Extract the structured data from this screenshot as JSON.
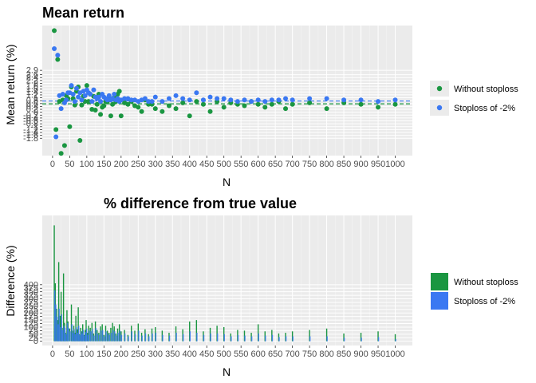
{
  "colors": {
    "without": "#1a9641",
    "with": "#3a78f2",
    "panel": "#ebebeb",
    "grid_major": "#ffffff"
  },
  "legend": {
    "items": [
      "Without stoploss",
      "Stoploss of -2%"
    ]
  },
  "chart_data": [
    {
      "type": "scatter",
      "title": "Mean return",
      "xlabel": "N",
      "ylabel": "Mean return (%)",
      "x_ticks": [
        0,
        50,
        100,
        150,
        200,
        250,
        300,
        350,
        400,
        450,
        500,
        550,
        600,
        650,
        700,
        750,
        800,
        850,
        900,
        950,
        1000
      ],
      "y_ticks": [
        "-1.8",
        "-1.6",
        "-1.4",
        "-1.2",
        "-1",
        "-0.8",
        "-0.6",
        "-0.4",
        "-0.2",
        "0",
        "0.2",
        "0.4",
        "0.6",
        "0.8",
        "1",
        "1.2",
        "1.4",
        "1.6",
        "1.8",
        "2",
        "2.2",
        "2.4",
        "2.6",
        "2.9"
      ],
      "y_tick_values": [
        -1.8,
        -1.6,
        -1.4,
        -1.2,
        -1.0,
        -0.8,
        -0.6,
        -0.4,
        -0.2,
        0.0,
        0.2,
        0.4,
        0.6,
        0.8,
        1.0,
        1.2,
        1.4,
        1.6,
        1.8,
        2.0,
        2.2,
        2.4,
        2.6,
        2.9
      ],
      "xlim": [
        -30,
        1050
      ],
      "ylim": [
        -3.0,
        6.0
      ],
      "hlines": [
        {
          "series": "Without stoploss",
          "y": 0.58
        },
        {
          "series": "Stoploss of -2%",
          "y": 0.78
        }
      ],
      "series": [
        {
          "name": "Without stoploss",
          "x": [
            5,
            10,
            15,
            20,
            25,
            30,
            35,
            40,
            45,
            50,
            55,
            60,
            65,
            70,
            75,
            80,
            85,
            90,
            95,
            100,
            105,
            110,
            115,
            120,
            125,
            130,
            135,
            140,
            145,
            150,
            155,
            160,
            165,
            170,
            175,
            180,
            185,
            190,
            195,
            200,
            210,
            220,
            230,
            240,
            250,
            260,
            270,
            280,
            290,
            300,
            320,
            340,
            360,
            380,
            400,
            420,
            440,
            460,
            480,
            500,
            520,
            540,
            560,
            580,
            600,
            620,
            640,
            660,
            680,
            700,
            750,
            800,
            850,
            900,
            950,
            1000
          ],
          "y": [
            5.65,
            -1.2,
            3.65,
            0.75,
            -2.85,
            0.85,
            -2.3,
            1.15,
            0.95,
            -1.0,
            1.75,
            0.95,
            0.5,
            1.45,
            1.75,
            -1.95,
            0.5,
            1.1,
            0.75,
            1.85,
            0.75,
            1.25,
            0.2,
            1.1,
            0.15,
            0.55,
            1.25,
            -0.15,
            0.35,
            0.45,
            0.75,
            0.75,
            0.95,
            -0.25,
            0.55,
            1.05,
            0.75,
            1.25,
            1.45,
            -0.25,
            0.65,
            0.55,
            0.75,
            0.45,
            0.35,
            0.05,
            0.85,
            0.55,
            0.55,
            0.25,
            0.05,
            0.45,
            0.25,
            0.65,
            -0.25,
            0.75,
            0.55,
            0.05,
            0.75,
            0.35,
            0.65,
            0.55,
            0.45,
            0.75,
            0.55,
            0.35,
            0.55,
            0.75,
            0.25,
            0.55,
            0.65,
            0.25,
            0.65,
            0.55,
            0.35,
            0.55
          ]
        },
        {
          "name": "Stoploss of -2%",
          "x": [
            5,
            10,
            15,
            20,
            25,
            30,
            35,
            40,
            45,
            50,
            55,
            60,
            65,
            70,
            75,
            80,
            85,
            90,
            95,
            100,
            105,
            110,
            115,
            120,
            125,
            130,
            135,
            140,
            145,
            150,
            155,
            160,
            165,
            170,
            175,
            180,
            185,
            190,
            195,
            200,
            210,
            220,
            230,
            240,
            250,
            260,
            270,
            280,
            290,
            300,
            320,
            340,
            360,
            380,
            400,
            420,
            440,
            460,
            480,
            500,
            520,
            540,
            560,
            580,
            600,
            620,
            640,
            660,
            680,
            700,
            750,
            800,
            850,
            900,
            950,
            1000
          ],
          "y": [
            4.4,
            -1.7,
            3.95,
            1.15,
            0.25,
            1.25,
            0.65,
            0.85,
            1.35,
            1.35,
            1.85,
            1.25,
            0.75,
            1.65,
            1.05,
            1.35,
            0.85,
            1.45,
            1.15,
            1.55,
            1.35,
            1.25,
            0.75,
            1.55,
            1.05,
            0.95,
            1.05,
            0.75,
            1.25,
            1.05,
            0.95,
            0.85,
            1.15,
            0.85,
            0.95,
            1.25,
            0.85,
            0.95,
            0.75,
            0.85,
            0.95,
            0.95,
            0.85,
            0.85,
            0.75,
            0.85,
            0.95,
            0.75,
            0.75,
            1.05,
            0.75,
            0.95,
            1.15,
            0.95,
            0.85,
            1.35,
            0.85,
            1.05,
            0.95,
            0.95,
            0.85,
            0.75,
            0.85,
            0.75,
            0.85,
            0.75,
            0.85,
            0.85,
            0.95,
            0.85,
            0.95,
            0.95,
            0.85,
            0.85,
            0.75,
            0.85
          ]
        }
      ]
    },
    {
      "type": "bar",
      "title": "% difference from true value",
      "xlabel": "N",
      "ylabel": "Difference (%)",
      "x_ticks": [
        0,
        50,
        100,
        150,
        200,
        250,
        300,
        350,
        400,
        450,
        500,
        550,
        600,
        650,
        700,
        750,
        800,
        850,
        900,
        950,
        1000
      ],
      "y_ticks": [
        0,
        25,
        50,
        75,
        100,
        125,
        150,
        175,
        200,
        225,
        250,
        275,
        300,
        325,
        350,
        375,
        400
      ],
      "xlim": [
        -30,
        1050
      ],
      "ylim": [
        -30,
        890
      ],
      "series": [
        {
          "name": "Without stoploss",
          "x": [
            5,
            8,
            12,
            15,
            18,
            22,
            25,
            28,
            32,
            35,
            38,
            42,
            45,
            50,
            55,
            58,
            62,
            65,
            68,
            72,
            75,
            78,
            82,
            85,
            88,
            92,
            95,
            98,
            102,
            105,
            110,
            115,
            120,
            125,
            130,
            135,
            140,
            145,
            150,
            155,
            160,
            165,
            170,
            175,
            180,
            185,
            190,
            195,
            200,
            210,
            220,
            230,
            240,
            250,
            260,
            270,
            280,
            290,
            300,
            320,
            340,
            360,
            380,
            400,
            420,
            440,
            460,
            480,
            500,
            520,
            540,
            560,
            580,
            600,
            620,
            640,
            660,
            680,
            700,
            750,
            800,
            850,
            900,
            950,
            1000
          ],
          "values": [
            820,
            410,
            230,
            150,
            560,
            180,
            350,
            95,
            480,
            130,
            60,
            220,
            140,
            90,
            260,
            75,
            110,
            60,
            180,
            85,
            240,
            50,
            95,
            70,
            120,
            45,
            80,
            150,
            60,
            110,
            95,
            130,
            55,
            140,
            80,
            60,
            105,
            120,
            45,
            110,
            75,
            60,
            95,
            130,
            105,
            55,
            90,
            120,
            70,
            80,
            45,
            110,
            75,
            125,
            60,
            85,
            50,
            90,
            100,
            75,
            60,
            105,
            85,
            140,
            150,
            70,
            95,
            110,
            100,
            55,
            80,
            75,
            60,
            120,
            70,
            80,
            55,
            60,
            70,
            80,
            90,
            55,
            60,
            70,
            50
          ]
        },
        {
          "name": "Stoploss of -2%",
          "x": [
            5,
            8,
            12,
            15,
            18,
            22,
            25,
            28,
            32,
            35,
            38,
            42,
            45,
            50,
            55,
            58,
            62,
            65,
            68,
            72,
            75,
            78,
            82,
            85,
            88,
            92,
            95,
            98,
            102,
            105,
            110,
            115,
            120,
            125,
            130,
            135,
            140,
            145,
            150,
            155,
            160,
            165,
            170,
            175,
            180,
            185,
            190,
            195,
            200,
            210,
            220,
            230,
            240,
            250,
            260,
            270,
            280,
            290,
            300,
            320,
            340,
            360,
            380,
            400,
            420,
            440,
            460,
            480,
            500,
            520,
            540,
            560,
            580,
            600,
            620,
            640,
            660,
            680,
            700,
            750,
            800,
            850,
            900,
            950,
            1000
          ],
          "values": [
            360,
            260,
            175,
            120,
            230,
            100,
            190,
            80,
            110,
            95,
            50,
            130,
            95,
            70,
            120,
            60,
            85,
            50,
            100,
            60,
            110,
            45,
            70,
            55,
            80,
            40,
            65,
            90,
            45,
            75,
            70,
            85,
            40,
            95,
            55,
            45,
            75,
            80,
            35,
            70,
            55,
            45,
            60,
            80,
            70,
            40,
            60,
            75,
            45,
            55,
            35,
            70,
            50,
            75,
            40,
            55,
            35,
            55,
            60,
            45,
            40,
            60,
            50,
            70,
            60,
            45,
            55,
            55,
            50,
            35,
            45,
            40,
            35,
            55,
            40,
            45,
            30,
            35,
            35,
            35,
            35,
            25,
            25,
            30,
            15
          ]
        }
      ]
    }
  ]
}
